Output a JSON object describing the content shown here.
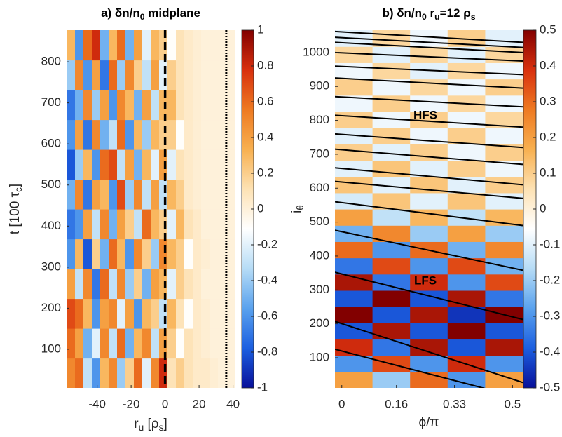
{
  "chart_data": [
    {
      "type": "heatmap",
      "title": [
        "a) δn/n",
        "0",
        "  midplane"
      ],
      "xlabel": [
        "r",
        "u",
        " [ρ",
        "s",
        "]"
      ],
      "ylabel": [
        "t [100 τ",
        "c",
        "]"
      ],
      "xlim": [
        -58,
        41
      ],
      "xticks": [
        -40,
        -20,
        0,
        20,
        40
      ],
      "ylim": [
        6,
        877
      ],
      "yticks": [
        100,
        200,
        300,
        400,
        500,
        600,
        700,
        800
      ],
      "clim": [
        -1,
        1
      ],
      "cticks": [
        -1,
        -0.8,
        -0.6,
        -0.4,
        -0.2,
        0,
        0.2,
        0.4,
        0.6,
        0.8,
        1
      ],
      "colormap": [
        "#08109a",
        "#1c5fe0",
        "#5aa2ee",
        "#b6dcf6",
        "#ffffff",
        "#fde2b4",
        "#f8b050",
        "#ee7a22",
        "#d8300e",
        "#820000"
      ],
      "vlines": [
        {
          "x": 0,
          "style": "dashed"
        },
        {
          "x": 36,
          "style": "dotted"
        }
      ],
      "z": [
        [
          0.5,
          0.6,
          -0.3,
          -0.6,
          0.3,
          0.5,
          -0.4,
          0.2,
          0.6,
          -0.2,
          0.5,
          0.8,
          0.1,
          0.2,
          0.1,
          0.05,
          0.05,
          0.02,
          0,
          0
        ],
        [
          0.6,
          0.4,
          -0.5,
          -0.2,
          0.5,
          -0.3,
          0.6,
          -0.5,
          0.3,
          0.5,
          -0.3,
          0.4,
          0.2,
          -0.1,
          0.1,
          0.05,
          0.02,
          0,
          0,
          0
        ],
        [
          0.7,
          0.6,
          0.3,
          -0.6,
          0.4,
          0.5,
          -0.2,
          0.4,
          -0.6,
          0.3,
          0.2,
          -0.3,
          0.3,
          0.1,
          -0.1,
          0.05,
          0.02,
          0,
          0,
          0
        ],
        [
          0.4,
          -0.3,
          0.5,
          -0.7,
          0.6,
          -0.3,
          0.5,
          -0.4,
          0.2,
          -0.5,
          0.4,
          0.3,
          -0.2,
          0.2,
          0.1,
          0.05,
          0,
          0,
          0,
          0
        ],
        [
          -0.6,
          0.3,
          -0.8,
          0.2,
          -0.5,
          0.6,
          0.3,
          -0.6,
          0.5,
          0.2,
          -0.4,
          0.5,
          0.3,
          0.2,
          -0.1,
          0.05,
          0.02,
          0,
          0,
          0
        ],
        [
          -0.7,
          -0.6,
          0.4,
          -0.3,
          0.5,
          -0.5,
          0.4,
          0.2,
          -0.3,
          0.6,
          0.3,
          0.2,
          -0.2,
          0.3,
          0.1,
          0.05,
          0,
          0,
          0,
          0
        ],
        [
          -0.5,
          0.5,
          -0.7,
          0.4,
          0.3,
          -0.6,
          0.7,
          -0.4,
          0.5,
          -0.3,
          0.4,
          -0.3,
          0.3,
          0.2,
          0.05,
          0.02,
          0,
          0,
          0,
          0
        ],
        [
          -0.8,
          -0.4,
          0.3,
          -0.6,
          0.6,
          0.7,
          -0.3,
          0.4,
          -0.5,
          0.3,
          -0.2,
          0.4,
          -0.2,
          0.1,
          0.05,
          0.02,
          0,
          0,
          0,
          0
        ],
        [
          -0.6,
          0.4,
          -0.7,
          0.5,
          -0.5,
          -0.3,
          0.6,
          -0.6,
          0.3,
          -0.4,
          0.3,
          0.2,
          0.2,
          -0.1,
          0.05,
          0.02,
          0,
          0,
          0,
          0
        ],
        [
          -0.7,
          -0.5,
          0.5,
          -0.4,
          0.4,
          -0.6,
          0.5,
          0.3,
          -0.5,
          0.4,
          -0.3,
          0.3,
          0.3,
          0.1,
          0.05,
          0.02,
          0,
          0,
          0,
          0
        ],
        [
          -0.4,
          0.5,
          -0.6,
          0.4,
          -0.7,
          0.6,
          -0.4,
          0.5,
          0.2,
          -0.3,
          0.4,
          -0.2,
          0.2,
          0.1,
          0.05,
          0.02,
          0,
          0,
          0,
          0
        ],
        [
          0.3,
          -0.6,
          0.6,
          0.8,
          -0.5,
          0.3,
          0.6,
          -0.5,
          0.4,
          -0.2,
          0.3,
          0.2,
          -0.1,
          0.1,
          0.05,
          0.02,
          0,
          0,
          0,
          0
        ]
      ]
    },
    {
      "type": "heatmap",
      "title": [
        "b) δn/n",
        "0",
        "  r",
        "u",
        "=12 ρ",
        "s"
      ],
      "xlabel": [
        "ϕ/π"
      ],
      "ylabel": [
        "i",
        "θ"
      ],
      "xlim": [
        -0.02,
        0.53
      ],
      "xticks": [
        0,
        0.16,
        0.33,
        0.5
      ],
      "ylim": [
        11,
        1066
      ],
      "yticks": [
        100,
        200,
        300,
        400,
        500,
        600,
        700,
        800,
        900,
        1000
      ],
      "clim": [
        -0.5,
        0.5
      ],
      "cticks": [
        -0.5,
        -0.4,
        -0.3,
        -0.2,
        -0.1,
        0,
        0.1,
        0.2,
        0.3,
        0.4,
        0.5
      ],
      "colormap": [
        "#08109a",
        "#1c5fe0",
        "#5aa2ee",
        "#b6dcf6",
        "#ffffff",
        "#fde2b4",
        "#f8b050",
        "#ee7a22",
        "#d8300e",
        "#820000"
      ],
      "annotations": [
        "HFS",
        "LFS"
      ],
      "contours": [
        [
          1062,
          1030
        ],
        [
          1045,
          1015
        ],
        [
          1030,
          1000
        ],
        [
          1000,
          975
        ],
        [
          960,
          935
        ],
        [
          925,
          895
        ],
        [
          870,
          840
        ],
        [
          815,
          780
        ],
        [
          760,
          720
        ],
        [
          715,
          670
        ],
        [
          660,
          610
        ],
        [
          620,
          570
        ],
        [
          560,
          490
        ],
        [
          476,
          358
        ],
        [
          352,
          213
        ],
        [
          207,
          27
        ],
        [
          125,
          -20
        ]
      ],
      "z": [
        [
          0.2,
          -0.2,
          0.3,
          -0.3,
          0.2
        ],
        [
          -0.3,
          0.35,
          -0.3,
          0.4,
          -0.3
        ],
        [
          0.4,
          -0.35,
          0.45,
          -0.4,
          0.45
        ],
        [
          -0.4,
          0.45,
          -0.4,
          0.5,
          -0.4
        ],
        [
          0.5,
          -0.4,
          0.45,
          -0.45,
          0.5
        ],
        [
          -0.4,
          0.5,
          -0.4,
          0.45,
          -0.35
        ],
        [
          0.45,
          -0.35,
          0.4,
          -0.3,
          0.35
        ],
        [
          -0.35,
          0.35,
          -0.3,
          0.35,
          -0.25
        ],
        [
          0.3,
          -0.3,
          0.3,
          -0.25,
          0.25
        ],
        [
          -0.25,
          0.25,
          -0.2,
          0.2,
          -0.2
        ],
        [
          0.2,
          -0.15,
          0.15,
          -0.15,
          0.15
        ],
        [
          -0.12,
          0.12,
          -0.1,
          0.12,
          -0.1
        ],
        [
          0.12,
          -0.1,
          0.12,
          -0.1,
          0.1
        ],
        [
          -0.1,
          0.12,
          -0.1,
          0.1,
          -0.08
        ],
        [
          0.1,
          -0.1,
          0.1,
          -0.08,
          0.1
        ],
        [
          -0.1,
          0.1,
          -0.08,
          0.1,
          -0.08
        ],
        [
          0.1,
          -0.08,
          0.1,
          -0.08,
          0.08
        ],
        [
          -0.08,
          0.1,
          -0.08,
          0.08,
          -0.08
        ],
        [
          0.1,
          -0.08,
          0.08,
          -0.08,
          0.1
        ],
        [
          -0.08,
          0.08,
          -0.1,
          0.08,
          -0.08
        ],
        [
          0.08,
          -0.1,
          0.08,
          -0.1,
          0.08
        ],
        [
          -0.1,
          0.08,
          -0.08,
          0.1,
          -0.1
        ]
      ]
    }
  ]
}
